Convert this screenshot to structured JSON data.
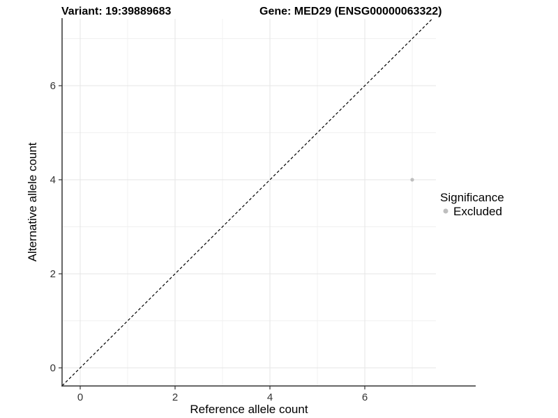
{
  "chart_data": {
    "type": "scatter",
    "title_left": "Variant: 19:39889683",
    "title_right": "Gene: MED29 (ENSG00000063322)",
    "xlabel": "Reference allele count",
    "ylabel": "Alternative allele count",
    "xlim": [
      -0.38,
      7.5
    ],
    "ylim": [
      -0.39,
      7.42
    ],
    "x_ticks": [
      0,
      2,
      4,
      6
    ],
    "y_ticks": [
      0,
      2,
      4,
      6
    ],
    "x_minor": [
      1,
      3,
      5,
      7
    ],
    "y_minor": [
      1,
      3,
      5,
      7
    ],
    "grid": "major+minor",
    "reference_line": {
      "type": "identity",
      "style": "dashed",
      "color": "#000000"
    },
    "series": [
      {
        "name": "Excluded",
        "color": "#bebebe",
        "points": [
          {
            "x": 7,
            "y": 4
          }
        ]
      }
    ],
    "legend": {
      "title": "Significance",
      "position": "right",
      "items": [
        {
          "label": "Excluded",
          "color": "#bebebe",
          "marker": "circle"
        }
      ]
    },
    "colors": {
      "axis_line": "#333333",
      "tick_mark": "#333333",
      "tick_label": "#333333",
      "grid_major": "#e5e5e5",
      "grid_minor": "#f0f0f0",
      "background": "#ffffff"
    }
  }
}
